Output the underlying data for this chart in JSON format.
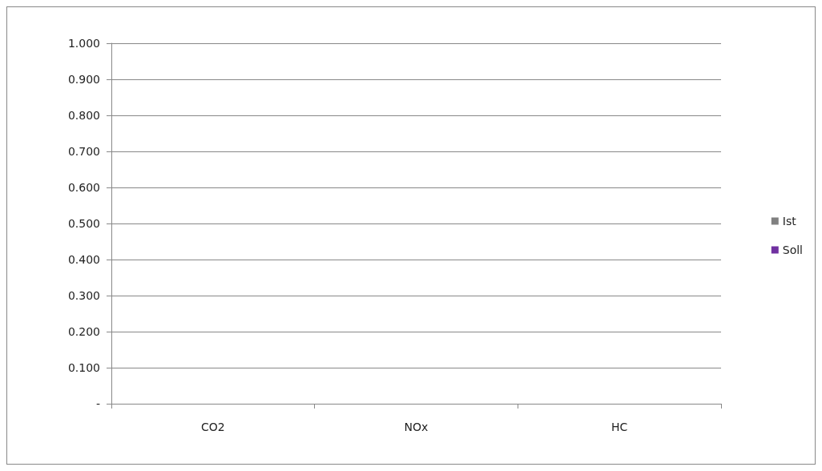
{
  "chart_data": {
    "type": "bar",
    "categories": [
      "CO2",
      "NOx",
      "HC"
    ],
    "series": [
      {
        "name": "Ist",
        "color": "#808080",
        "values": [
          0,
          0,
          0
        ]
      },
      {
        "name": "Soll",
        "color": "#7030a0",
        "values": [
          0,
          0,
          0
        ]
      }
    ],
    "ylim": [
      0,
      1
    ],
    "yticks": [
      {
        "value": 0,
        "label": "-"
      },
      {
        "value": 0.1,
        "label": "0.100"
      },
      {
        "value": 0.2,
        "label": "0.200"
      },
      {
        "value": 0.3,
        "label": "0.300"
      },
      {
        "value": 0.4,
        "label": "0.400"
      },
      {
        "value": 0.5,
        "label": "0.500"
      },
      {
        "value": 0.6,
        "label": "0.600"
      },
      {
        "value": 0.7,
        "label": "0.700"
      },
      {
        "value": 0.8,
        "label": "0.800"
      },
      {
        "value": 0.9,
        "label": "0.900"
      },
      {
        "value": 1,
        "label": "1.000"
      }
    ],
    "grid": "y",
    "legend": "right"
  }
}
